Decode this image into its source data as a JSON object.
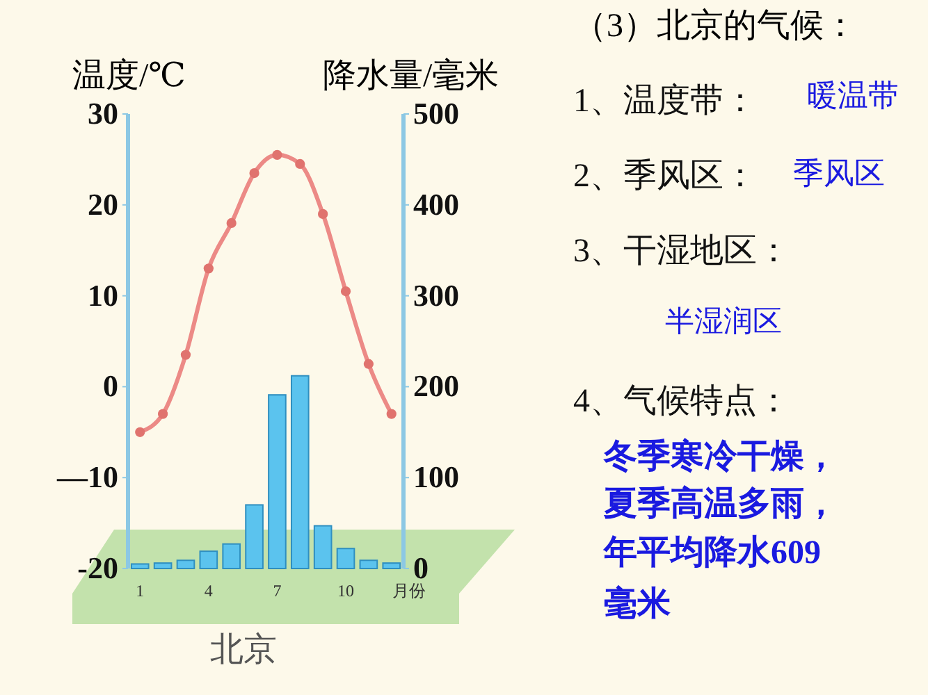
{
  "chart_data": {
    "type": "bar",
    "title": "（3）北京的气候：",
    "ylabel": "温度/℃",
    "y2label": "降水量/毫米",
    "xlabel": "月份",
    "categories": [
      "1",
      null,
      null,
      "4",
      null,
      null,
      "7",
      null,
      null,
      "10",
      null,
      null
    ],
    "series": [
      {
        "type": "bar",
        "axis": "y2",
        "color": "#5bc3ee",
        "values": [
          5,
          6,
          9,
          19,
          27,
          70,
          191,
          212,
          47,
          22,
          9,
          6
        ]
      },
      {
        "type": "line",
        "axis": "y",
        "color": "#ec8a86",
        "marker": "circle",
        "values": [
          -5,
          -3,
          3.5,
          13,
          18,
          23.5,
          25.5,
          24.5,
          19,
          10.5,
          2.5,
          -3
        ]
      }
    ],
    "ylim": [
      -20,
      30
    ],
    "yticks": [
      {
        "value": -20,
        "label": "-20"
      },
      {
        "value": -10,
        "label": "—10"
      },
      0,
      10,
      20,
      30
    ],
    "y2lim": [
      0,
      500
    ],
    "y2ticks": [
      0,
      100,
      200,
      300,
      400,
      500
    ],
    "grid": false,
    "annotations": [
      "北京",
      "1、温度带：",
      "暖温带",
      "2、季风区：",
      "季风区",
      "3、干湿地区：",
      "半湿润区",
      "4、气候特点：",
      "冬季寒冷干燥，",
      "夏季高温多雨，",
      "年平均降水609",
      "毫米"
    ]
  }
}
